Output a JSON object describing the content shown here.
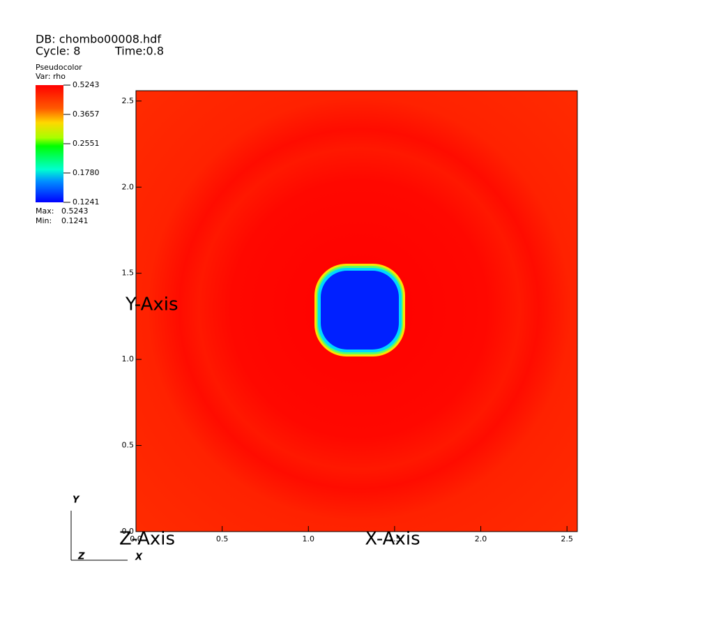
{
  "chart_data": {
    "type": "pseudocolor",
    "database": "DB: chombo00008.hdf",
    "cycle": "Cycle: 8",
    "time": "Time:0.8",
    "plot_name": "Pseudocolor",
    "variable": "Var: rho",
    "colorbar": {
      "range": [
        0.1241,
        0.5243
      ],
      "log": true,
      "ticks": [
        0.5243,
        0.3657,
        0.2551,
        {
          "value": 0.178,
          "label": "0.1780"
        },
        0.1241
      ]
    },
    "max_label": "Max:",
    "max": 0.5243,
    "min_label": "Min:",
    "min": 0.1241,
    "xlabel": "X-Axis",
    "ylabel": "Y-Axis",
    "zlabel": "Z-Axis",
    "xlim": [
      0,
      2.56
    ],
    "ylim": [
      0,
      2.56
    ],
    "xticks": [
      {
        "value": 0,
        "label": "0.0"
      },
      {
        "value": 0.5,
        "label": "0.5"
      },
      {
        "value": 1,
        "label": "1.0"
      },
      {
        "value": 1.5,
        "label": "1.5"
      },
      {
        "value": 2,
        "label": "2.0"
      },
      {
        "value": 2.5,
        "label": "2.5"
      }
    ],
    "yticks": [
      {
        "value": 0,
        "label": "0.0"
      },
      {
        "value": 0.5,
        "label": "0.5"
      },
      {
        "value": 1,
        "label": "1.0"
      },
      {
        "value": 1.5,
        "label": "1.5"
      },
      {
        "value": 2,
        "label": "2.0"
      },
      {
        "value": 2.5,
        "label": "2.5"
      }
    ],
    "triad": {
      "y": "Y",
      "z": "Z",
      "x": "X"
    }
  }
}
